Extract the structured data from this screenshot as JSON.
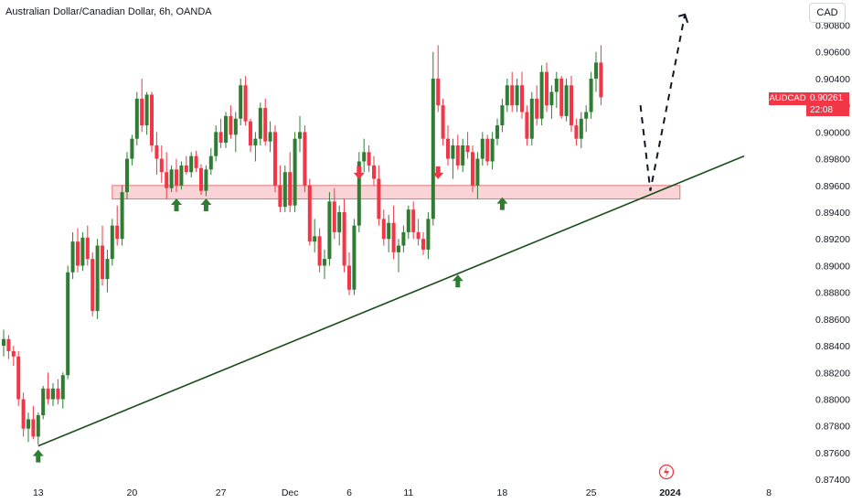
{
  "header": {
    "title": "Australian Dollar/Canadian Dollar, 6h, OANDA",
    "currency_button": "CAD"
  },
  "price_tag": {
    "symbol": "AUDCAD",
    "price": "0.90261",
    "countdown": "22:08"
  },
  "colors": {
    "up": "#26a69a",
    "up_body": "#2e7d32",
    "down": "#f23645",
    "zone": "#f5b5bb",
    "zone_border": "#e57373",
    "trendline": "#1b4d1b",
    "arrow_up": "#2e7d32",
    "arrow_down": "#f23645"
  },
  "icons": {
    "tv_logo": "lightning-circle-icon"
  },
  "chart_data": {
    "type": "candlestick",
    "symbol": "AUDCAD",
    "timeframe": "6h",
    "ylim": [
      0.8736,
      0.9092
    ],
    "y_ticks": [
      "0.90800",
      "0.90600",
      "0.90400",
      "0.90200",
      "0.90000",
      "0.89800",
      "0.89600",
      "0.89400",
      "0.89200",
      "0.89000",
      "0.88800",
      "0.88600",
      "0.88400",
      "0.88200",
      "0.88000",
      "0.87800",
      "0.87600",
      "0.87400"
    ],
    "x_ticks": [
      {
        "label": "13",
        "bar": 7,
        "bold": false
      },
      {
        "label": "20",
        "bar": 26,
        "bold": false
      },
      {
        "label": "27",
        "bar": 44,
        "bold": false
      },
      {
        "label": "Dec",
        "bar": 58,
        "bold": false
      },
      {
        "label": "6",
        "bar": 70,
        "bold": false
      },
      {
        "label": "11",
        "bar": 82,
        "bold": false
      },
      {
        "label": "18",
        "bar": 101,
        "bold": false
      },
      {
        "label": "25",
        "bar": 119,
        "bold": false
      },
      {
        "label": "2024",
        "bar": 135,
        "bold": true
      },
      {
        "label": "8",
        "bar": 155,
        "bold": false
      }
    ],
    "candles": [
      [
        0.884,
        0.8852,
        0.8832,
        0.8845
      ],
      [
        0.8845,
        0.8848,
        0.883,
        0.8836
      ],
      [
        0.8836,
        0.884,
        0.8825,
        0.8832
      ],
      [
        0.8832,
        0.8836,
        0.8795,
        0.88
      ],
      [
        0.88,
        0.8805,
        0.8772,
        0.8778
      ],
      [
        0.8778,
        0.879,
        0.8768,
        0.8785
      ],
      [
        0.8785,
        0.8795,
        0.877,
        0.8772
      ],
      [
        0.8772,
        0.879,
        0.8766,
        0.8788
      ],
      [
        0.8788,
        0.881,
        0.8785,
        0.8808
      ],
      [
        0.8808,
        0.882,
        0.8796,
        0.88
      ],
      [
        0.88,
        0.8812,
        0.8795,
        0.8808
      ],
      [
        0.8808,
        0.8815,
        0.8796,
        0.88
      ],
      [
        0.88,
        0.882,
        0.8793,
        0.8818
      ],
      [
        0.8818,
        0.89,
        0.8815,
        0.8895
      ],
      [
        0.8895,
        0.8925,
        0.889,
        0.8918
      ],
      [
        0.8918,
        0.8928,
        0.8895,
        0.89
      ],
      [
        0.89,
        0.8925,
        0.8896,
        0.8921
      ],
      [
        0.8921,
        0.893,
        0.89,
        0.8905
      ],
      [
        0.8905,
        0.891,
        0.8862,
        0.8866
      ],
      [
        0.8866,
        0.892,
        0.886,
        0.8915
      ],
      [
        0.8915,
        0.893,
        0.8885,
        0.889
      ],
      [
        0.889,
        0.8912,
        0.888,
        0.8905
      ],
      [
        0.8905,
        0.8935,
        0.89,
        0.893
      ],
      [
        0.893,
        0.8945,
        0.8915,
        0.892
      ],
      [
        0.892,
        0.896,
        0.8915,
        0.8955
      ],
      [
        0.8955,
        0.8985,
        0.895,
        0.898
      ],
      [
        0.898,
        0.8998,
        0.8975,
        0.8995
      ],
      [
        0.8995,
        0.903,
        0.899,
        0.9025
      ],
      [
        0.9025,
        0.904,
        0.9,
        0.9005
      ],
      [
        0.9005,
        0.903,
        0.8998,
        0.9028
      ],
      [
        0.9028,
        0.903,
        0.8985,
        0.899
      ],
      [
        0.899,
        0.9,
        0.8968,
        0.898
      ],
      [
        0.898,
        0.899,
        0.8962,
        0.897
      ],
      [
        0.897,
        0.8985,
        0.895,
        0.8958
      ],
      [
        0.8958,
        0.8975,
        0.8955,
        0.8972
      ],
      [
        0.8972,
        0.898,
        0.8955,
        0.896
      ],
      [
        0.896,
        0.8978,
        0.8957,
        0.8975
      ],
      [
        0.8975,
        0.8982,
        0.8968,
        0.897
      ],
      [
        0.897,
        0.8985,
        0.8966,
        0.8982
      ],
      [
        0.8982,
        0.8986,
        0.897,
        0.8973
      ],
      [
        0.8973,
        0.8976,
        0.8953,
        0.8956
      ],
      [
        0.8956,
        0.8975,
        0.8952,
        0.8972
      ],
      [
        0.8972,
        0.8988,
        0.8968,
        0.8982
      ],
      [
        0.8982,
        0.9005,
        0.8978,
        0.9
      ],
      [
        0.9,
        0.901,
        0.8988,
        0.8992
      ],
      [
        0.8992,
        0.9015,
        0.8988,
        0.9012
      ],
      [
        0.9012,
        0.902,
        0.8995,
        0.8998
      ],
      [
        0.8998,
        0.9015,
        0.8985,
        0.901
      ],
      [
        0.901,
        0.904,
        0.9005,
        0.9035
      ],
      [
        0.9035,
        0.9042,
        0.9005,
        0.9008
      ],
      [
        0.9008,
        0.901,
        0.8985,
        0.899
      ],
      [
        0.899,
        0.9,
        0.8978,
        0.8995
      ],
      [
        0.8995,
        0.9022,
        0.899,
        0.9018
      ],
      [
        0.9018,
        0.9025,
        0.899,
        0.8993
      ],
      [
        0.8993,
        0.9008,
        0.8985,
        0.9
      ],
      [
        0.9,
        0.9005,
        0.8955,
        0.896
      ],
      [
        0.896,
        0.8975,
        0.894,
        0.8944
      ],
      [
        0.8944,
        0.8975,
        0.894,
        0.897
      ],
      [
        0.897,
        0.8985,
        0.894,
        0.8945
      ],
      [
        0.8945,
        0.9,
        0.894,
        0.8995
      ],
      [
        0.8995,
        0.9012,
        0.8985,
        0.9
      ],
      [
        0.9,
        0.9005,
        0.8955,
        0.896
      ],
      [
        0.896,
        0.8965,
        0.8915,
        0.8918
      ],
      [
        0.8918,
        0.8935,
        0.891,
        0.8922
      ],
      [
        0.8922,
        0.8928,
        0.8895,
        0.89
      ],
      [
        0.89,
        0.8912,
        0.889,
        0.8905
      ],
      [
        0.8905,
        0.8955,
        0.89,
        0.8948
      ],
      [
        0.8948,
        0.8958,
        0.892,
        0.8925
      ],
      [
        0.8925,
        0.8945,
        0.8915,
        0.894
      ],
      [
        0.894,
        0.895,
        0.8895,
        0.89
      ],
      [
        0.89,
        0.891,
        0.8878,
        0.8882
      ],
      [
        0.8882,
        0.8935,
        0.8878,
        0.893
      ],
      [
        0.893,
        0.8985,
        0.8925,
        0.8978
      ],
      [
        0.8978,
        0.8995,
        0.897,
        0.8985
      ],
      [
        0.8985,
        0.899,
        0.897,
        0.8975
      ],
      [
        0.8975,
        0.8982,
        0.896,
        0.8965
      ],
      [
        0.8965,
        0.8975,
        0.893,
        0.8935
      ],
      [
        0.8935,
        0.8942,
        0.8915,
        0.892
      ],
      [
        0.892,
        0.8938,
        0.891,
        0.8932
      ],
      [
        0.8932,
        0.8945,
        0.8905,
        0.891
      ],
      [
        0.891,
        0.892,
        0.8895,
        0.8915
      ],
      [
        0.8915,
        0.893,
        0.891,
        0.8925
      ],
      [
        0.8925,
        0.8945,
        0.892,
        0.8942
      ],
      [
        0.8942,
        0.8948,
        0.892,
        0.8925
      ],
      [
        0.8925,
        0.8935,
        0.8915,
        0.892
      ],
      [
        0.892,
        0.8925,
        0.8908,
        0.8912
      ],
      [
        0.8912,
        0.894,
        0.8905,
        0.8935
      ],
      [
        0.8935,
        0.906,
        0.893,
        0.904
      ],
      [
        0.904,
        0.9065,
        0.9015,
        0.902
      ],
      [
        0.902,
        0.9025,
        0.899,
        0.8995
      ],
      [
        0.8995,
        0.9005,
        0.8975,
        0.898
      ],
      [
        0.898,
        0.8995,
        0.8965,
        0.899
      ],
      [
        0.899,
        0.8998,
        0.8972,
        0.8975
      ],
      [
        0.8975,
        0.8995,
        0.897,
        0.899
      ],
      [
        0.899,
        0.9,
        0.898,
        0.8985
      ],
      [
        0.8985,
        0.899,
        0.8955,
        0.896
      ],
      [
        0.896,
        0.8985,
        0.895,
        0.898
      ],
      [
        0.898,
        0.9,
        0.8975,
        0.8995
      ],
      [
        0.8995,
        0.8998,
        0.8975,
        0.8978
      ],
      [
        0.8978,
        0.9,
        0.8972,
        0.8995
      ],
      [
        0.8995,
        0.901,
        0.899,
        0.9005
      ],
      [
        0.9005,
        0.9025,
        0.9,
        0.902
      ],
      [
        0.902,
        0.904,
        0.9015,
        0.9035
      ],
      [
        0.9035,
        0.9045,
        0.9015,
        0.902
      ],
      [
        0.902,
        0.904,
        0.9015,
        0.9035
      ],
      [
        0.9035,
        0.9045,
        0.901,
        0.9015
      ],
      [
        0.9015,
        0.902,
        0.899,
        0.8995
      ],
      [
        0.8995,
        0.903,
        0.899,
        0.9025
      ],
      [
        0.9025,
        0.9035,
        0.9005,
        0.901
      ],
      [
        0.901,
        0.905,
        0.9005,
        0.9045
      ],
      [
        0.9045,
        0.9052,
        0.9015,
        0.902
      ],
      [
        0.902,
        0.9035,
        0.901,
        0.903
      ],
      [
        0.903,
        0.9045,
        0.9018,
        0.904
      ],
      [
        0.904,
        0.9042,
        0.901,
        0.9012
      ],
      [
        0.9012,
        0.904,
        0.9008,
        0.9035
      ],
      [
        0.9035,
        0.9042,
        0.9,
        0.9005
      ],
      [
        0.9005,
        0.901,
        0.899,
        0.8995
      ],
      [
        0.8995,
        0.9015,
        0.8988,
        0.901
      ],
      [
        0.901,
        0.902,
        0.9,
        0.9015
      ],
      [
        0.9015,
        0.9045,
        0.901,
        0.904
      ],
      [
        0.904,
        0.906,
        0.903,
        0.9052
      ],
      [
        0.9052,
        0.9065,
        0.902,
        0.9026
      ]
    ],
    "support_zone": {
      "from_bar": 22,
      "to_bar": 137,
      "low": 0.8954,
      "high": 0.896
    },
    "trendline": {
      "x1": 7,
      "y1": 0.8765,
      "x2": 150,
      "y2": 0.8982
    },
    "projection": [
      {
        "bar": 129,
        "price": 0.902
      },
      {
        "bar": 131,
        "price": 0.8956
      },
      {
        "bar": 138,
        "price": 0.9088
      },
      {
        "bar": 140,
        "price": 0.908
      }
    ],
    "up_arrows": [
      {
        "bar": 7,
        "price": 0.8765
      },
      {
        "bar": 35,
        "price": 0.8953
      },
      {
        "bar": 41,
        "price": 0.8953
      },
      {
        "bar": 92,
        "price": 0.8896
      },
      {
        "bar": 101,
        "price": 0.8954
      }
    ],
    "down_arrows": [
      {
        "bar": 72,
        "price": 0.8962
      },
      {
        "bar": 88,
        "price": 0.8962
      }
    ]
  }
}
